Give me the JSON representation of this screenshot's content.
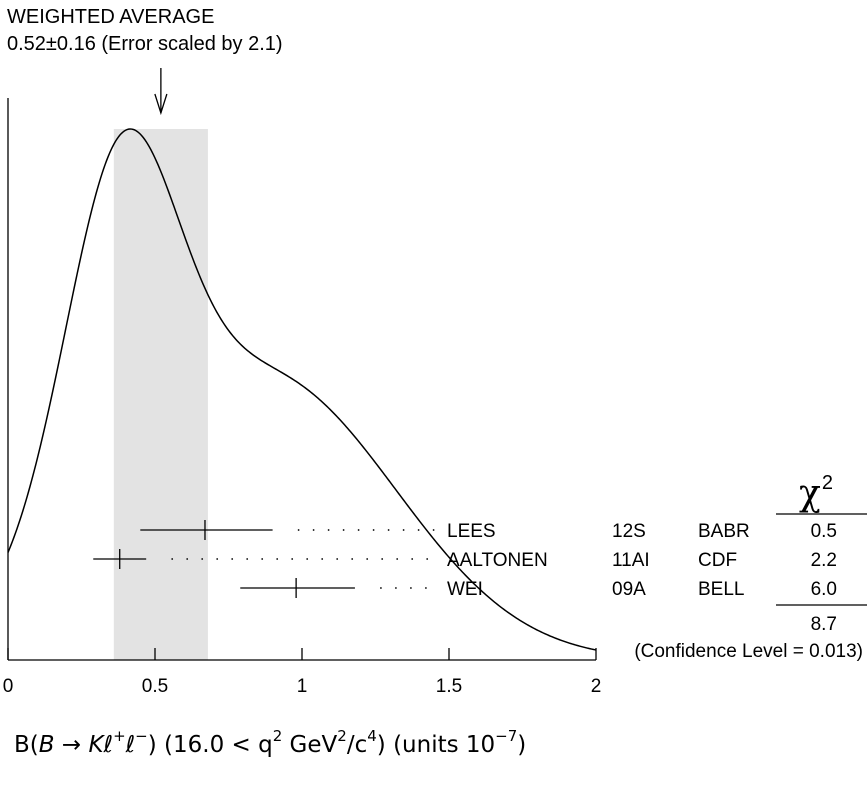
{
  "chart_data": {
    "type": "ideogram",
    "title_line1": "WEIGHTED AVERAGE",
    "title_line2": "0.52±0.16 (Error scaled by 2.1)",
    "weighted_average": 0.52,
    "weighted_error": 0.16,
    "error_scale": 2.1,
    "band": [
      0.36,
      0.68
    ],
    "xlim": [
      0,
      2
    ],
    "x_ticks": [
      "0",
      "0.5",
      "1",
      "1.5",
      "2"
    ],
    "x_tick_values": [
      0,
      0.5,
      1,
      1.5,
      2
    ],
    "xlabel": {
      "prefix": "B(",
      "b": "B",
      "arrow": " → ",
      "k": "K",
      "ell1": "ℓ",
      "plus": "+",
      "ell2": "ℓ",
      "minus": "−",
      "range": ") (16.0 < q",
      "two": "2",
      "gev": " GeV",
      "two_b": "2",
      "per_c": "/c",
      "four": "4",
      "units": ") (units 10",
      "exp": "−7",
      "close": ")"
    },
    "chi2_header": "χ",
    "chi2_header_sup": "2",
    "measurements": [
      {
        "name": "LEES",
        "ref": "12S",
        "exp": "BABR",
        "value": 0.67,
        "low": 0.45,
        "high": 0.9,
        "chi2": "0.5"
      },
      {
        "name": "AALTONEN",
        "ref": "11AI",
        "exp": "CDF",
        "value": 0.38,
        "low": 0.29,
        "high": 0.47,
        "chi2": "2.2"
      },
      {
        "name": "WEI",
        "ref": "09A",
        "exp": "BELL",
        "value": 0.98,
        "low": 0.79,
        "high": 1.18,
        "chi2": "6.0"
      }
    ],
    "chi2_total": "8.7",
    "confidence_level": "(Confidence Level = 0.013)"
  }
}
